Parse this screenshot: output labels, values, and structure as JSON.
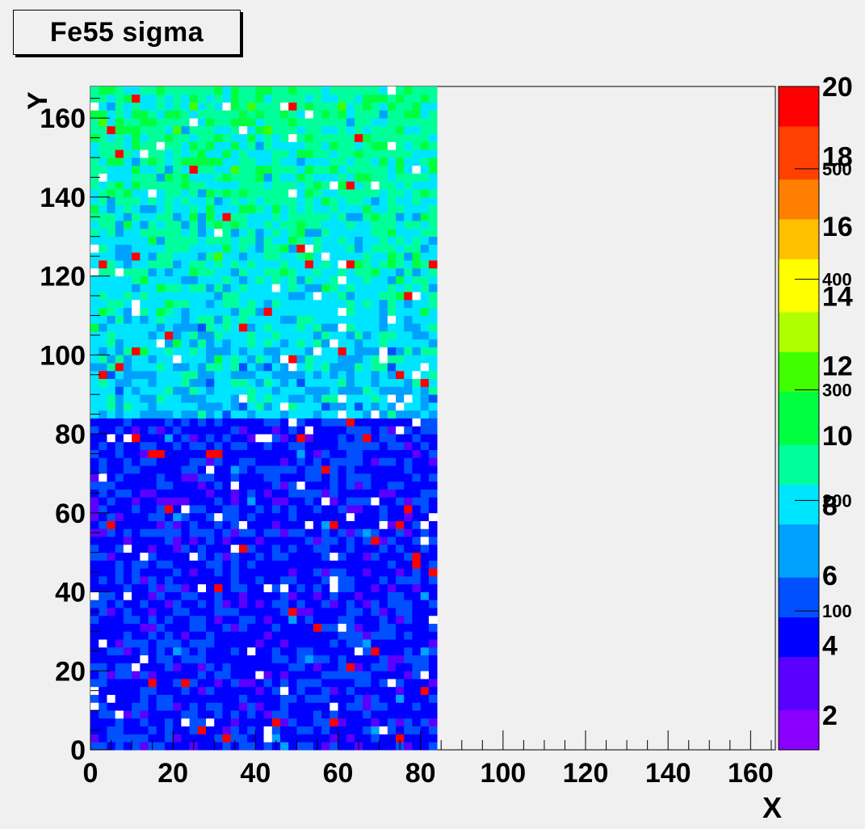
{
  "chart_data": {
    "type": "heatmap",
    "title": "Fe55 sigma",
    "xlabel": "X",
    "ylabel": "Y",
    "xlim": [
      0,
      166
    ],
    "ylim": [
      0,
      168
    ],
    "filled_x_range": [
      0,
      84
    ],
    "filled_y_range": [
      0,
      168
    ],
    "band_split_y": 84,
    "regions": [
      {
        "label": "lower band",
        "x": [
          0,
          84
        ],
        "y": [
          0,
          84
        ],
        "typical_value": 4.5,
        "spread": 1.0
      },
      {
        "label": "upper band",
        "x": [
          0,
          84
        ],
        "y": [
          84,
          168
        ],
        "typical_value_bottom": 7.5,
        "typical_value_top": 9.5,
        "spread": 1.3
      }
    ],
    "x_ticks": [
      0,
      20,
      40,
      60,
      80,
      100,
      120,
      140,
      160
    ],
    "y_ticks": [
      0,
      20,
      40,
      60,
      80,
      100,
      120,
      140,
      160
    ],
    "colorbar": {
      "range": [
        1,
        20
      ],
      "primary_ticks": [
        2,
        4,
        6,
        8,
        10,
        12,
        14,
        16,
        18,
        20
      ],
      "secondary_ticks": [
        100,
        200,
        300,
        400,
        500
      ],
      "palette": [
        "#8a00ff",
        "#5a00ff",
        "#0000ff",
        "#0050ff",
        "#00a0ff",
        "#00e5ff",
        "#00ff9a",
        "#00ff40",
        "#40ff00",
        "#b0ff00",
        "#ffff00",
        "#ffc000",
        "#ff8000",
        "#ff4000",
        "#ff0000"
      ]
    },
    "grid": false
  }
}
